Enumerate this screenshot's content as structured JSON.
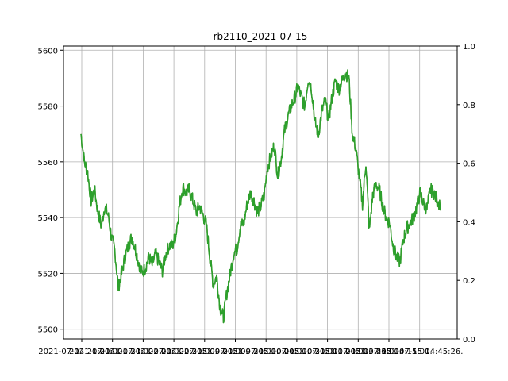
{
  "chart_data": {
    "type": "line",
    "title": "rb2110_2021-07-15",
    "xlabel": "",
    "ylabel": "",
    "ylim": [
      5496.5,
      5601.5
    ],
    "y2lim": [
      0.0,
      1.0
    ],
    "grid": true,
    "yticks": [
      5500,
      5520,
      5540,
      5560,
      5580,
      5600
    ],
    "y2ticks": [
      "0.0",
      "0.2",
      "0.4",
      "0.6",
      "0.8",
      "1.0"
    ],
    "xtick_labels": [
      "2021-07-14 21:00:00.",
      "2021-07-14 21:30:00.",
      "2021-07-14 22:00:00.",
      "2021-07-14 22:30:00.",
      "2021-07-15 09:00:00.",
      "2021-07-15 09:30:00.",
      "2021-07-15 10:00:00.",
      "2021-07-15 10:30:00.",
      "2021-07-15 11:00:00.",
      "2021-07-15 13:45:00.",
      "2021-07-15 14:15:00.",
      "2021-07-15 14:45:26."
    ],
    "series": [
      {
        "color": "#1f77b4",
        "values": [
          5570,
          5560,
          5556,
          5546,
          5550,
          5542,
          5537,
          5544,
          5541,
          5533,
          5528,
          5515,
          5520,
          5526,
          5530,
          5533,
          5529,
          5524,
          5520,
          5522,
          5526,
          5523,
          5527,
          5524,
          5521,
          5527,
          5530,
          5530,
          5534,
          5544,
          5551,
          5549,
          5550,
          5546,
          5542,
          5544,
          5541,
          5537,
          5526,
          5516,
          5519,
          5508,
          5504,
          5513,
          5520,
          5527,
          5529,
          5537,
          5538,
          5545,
          5549,
          5546,
          5542,
          5544,
          5548,
          5558,
          5562,
          5566,
          5555,
          5561,
          5571,
          5576,
          5580,
          5583,
          5587,
          5583,
          5580,
          5590,
          5586,
          5574,
          5570,
          5578,
          5582,
          5575,
          5583,
          5589,
          5586,
          5589,
          5592,
          5590,
          5570,
          5565,
          5555,
          5545,
          5560,
          5535,
          5548,
          5552,
          5550,
          5544,
          5540,
          5538,
          5530,
          5526,
          5524,
          5532,
          5536,
          5538,
          5540,
          5544,
          5549,
          5545,
          5543,
          5550,
          5549,
          5546,
          5545
        ]
      },
      {
        "color": "#ff7f0e",
        "values": [
          5570,
          5560,
          5556,
          5546,
          5550,
          5542,
          5537,
          5544,
          5541,
          5533,
          5528,
          5515,
          5520,
          5526,
          5530,
          5533,
          5529,
          5524,
          5520,
          5522,
          5526,
          5523,
          5527,
          5524,
          5521,
          5527,
          5530,
          5530,
          5534,
          5544,
          5551,
          5549,
          5550,
          5546,
          5542,
          5544,
          5541,
          5537,
          5526,
          5516,
          5519,
          5508,
          5504,
          5513,
          5520,
          5527,
          5529,
          5537,
          5538,
          5545,
          5549,
          5546,
          5542,
          5544,
          5548,
          5558,
          5562,
          5566,
          5555,
          5561,
          5571,
          5576,
          5580,
          5583,
          5587,
          5583,
          5580,
          5590,
          5586,
          5574,
          5570,
          5578,
          5582,
          5575,
          5583,
          5589,
          5586,
          5589,
          5592,
          5590,
          5570,
          5565,
          5555,
          5545,
          5560,
          5535,
          5548,
          5552,
          5550,
          5544,
          5540,
          5538,
          5530,
          5526,
          5524,
          5532,
          5536,
          5538,
          5540,
          5544,
          5549,
          5545,
          5543,
          5550,
          5549,
          5546,
          5545
        ]
      },
      {
        "color": "#2ca02c",
        "values": [
          5570,
          5560,
          5556,
          5546,
          5550,
          5542,
          5537,
          5544,
          5541,
          5533,
          5528,
          5515,
          5520,
          5526,
          5530,
          5533,
          5529,
          5524,
          5520,
          5522,
          5526,
          5523,
          5527,
          5524,
          5521,
          5527,
          5530,
          5530,
          5534,
          5544,
          5551,
          5549,
          5550,
          5546,
          5542,
          5544,
          5541,
          5537,
          5526,
          5516,
          5519,
          5508,
          5504,
          5513,
          5520,
          5527,
          5529,
          5537,
          5538,
          5545,
          5549,
          5546,
          5542,
          5544,
          5548,
          5558,
          5562,
          5566,
          5555,
          5561,
          5571,
          5576,
          5580,
          5583,
          5587,
          5583,
          5580,
          5590,
          5586,
          5574,
          5570,
          5578,
          5582,
          5575,
          5583,
          5589,
          5586,
          5589,
          5592,
          5590,
          5570,
          5565,
          5555,
          5545,
          5560,
          5535,
          5548,
          5552,
          5550,
          5544,
          5540,
          5538,
          5530,
          5526,
          5524,
          5532,
          5536,
          5538,
          5540,
          5544,
          5549,
          5545,
          5543,
          5550,
          5549,
          5546,
          5545
        ]
      }
    ]
  }
}
